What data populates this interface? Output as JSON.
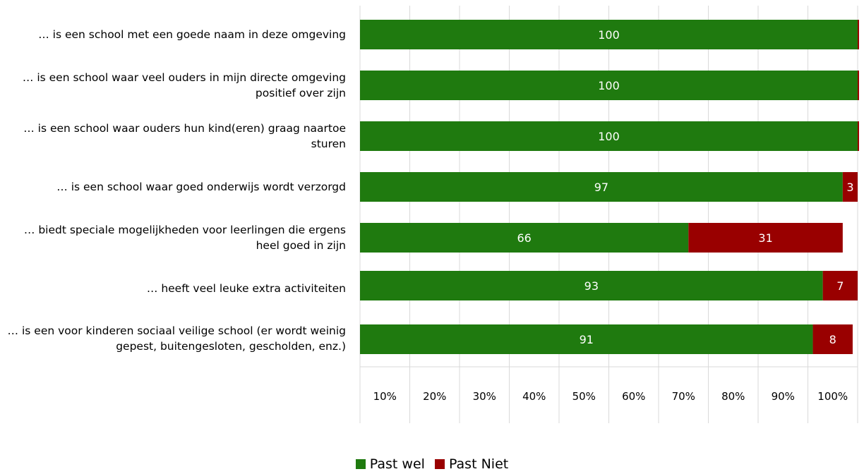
{
  "chart_data": {
    "type": "bar",
    "orientation": "horizontal",
    "stacked": true,
    "categories": [
      "… is een school met een goede naam in deze omgeving",
      "… is een school waar veel ouders in mijn directe omgeving positief over zijn",
      "… is een school waar ouders hun kind(eren) graag naartoe sturen",
      "… is een school waar goed onderwijs wordt verzorgd",
      "… biedt speciale mogelijkheden voor leerlingen die ergens heel goed in zijn",
      "… heeft veel leuke extra activiteiten",
      "… is een voor kinderen sociaal veilige school (er wordt weinig gepest, buitengesloten, gescholden, enz.)"
    ],
    "series": [
      {
        "name": "Past wel",
        "color": "#1f7a0f",
        "values": [
          100,
          100,
          100,
          97,
          66,
          93,
          91
        ]
      },
      {
        "name": "Past Niet",
        "color": "#990000",
        "values": [
          0,
          0,
          0,
          3,
          31,
          7,
          8
        ]
      }
    ],
    "data_labels": {
      "Past wel": [
        "100",
        "100",
        "100",
        "97",
        "66",
        "93",
        "91"
      ],
      "Past Niet": [
        "",
        "",
        "",
        "3",
        "31",
        "7",
        "8"
      ]
    },
    "xlim": [
      0,
      100
    ],
    "x_tick_labels": [
      "10%",
      "20%",
      "30%",
      "40%",
      "50%",
      "60%",
      "70%",
      "80%",
      "90%",
      "100%"
    ],
    "grid": true,
    "legend_position": "bottom"
  },
  "labels": [
    "… is een school met een goede naam in deze omgeving",
    "… is een school waar veel ouders in mijn directe omgeving positief over zijn",
    "… is een school waar ouders hun kind(eren) graag naartoe sturen",
    "… is een school waar goed onderwijs wordt verzorgd",
    "… biedt speciale mogelijkheden voor leerlingen die ergens heel goed in zijn",
    "… heeft veel leuke extra activiteiten",
    "… is een voor kinderen sociaal veilige school (er wordt weinig gepest, buitengesloten, gescholden, enz.)"
  ],
  "legend": {
    "wel_label": "Past wel",
    "niet_label": "Past Niet"
  }
}
